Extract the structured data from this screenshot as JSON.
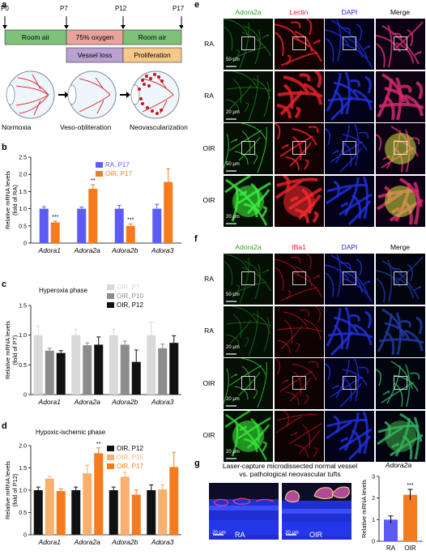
{
  "panels": {
    "a": "a",
    "b": "b",
    "c": "c",
    "d": "d",
    "e": "e",
    "f": "f",
    "g": "g"
  },
  "timeline": {
    "ticks": [
      "P0",
      "P7",
      "P12",
      "P17"
    ],
    "phases": [
      "Room air",
      "75% oxygen",
      "Room air"
    ],
    "stages": [
      "Vessel loss",
      "Proliferation"
    ],
    "eye_labels": [
      "Normoxia",
      "Veso-obliteration",
      "Neovascularization"
    ],
    "colors": {
      "room_air": "#7ec27a",
      "oxygen": "#e7a39c",
      "vessel_loss": "#b9a1d2",
      "proliferation": "#f6c98a",
      "vessel": "#d8383a"
    }
  },
  "chart_data": [
    {
      "panel": "b",
      "type": "bar",
      "ylabel": "Relative mRNA levels\n(fold of RA)",
      "ylim": [
        0,
        2.5
      ],
      "yticks": [
        "0",
        "0.5",
        "1.0",
        "1.5",
        "2.0",
        "2.5"
      ],
      "categories": [
        "Adora1",
        "Adora2a",
        "Adora2b",
        "Adora3"
      ],
      "series": [
        {
          "name": "RA, P17",
          "color": "#5c5cf2",
          "values": [
            1.0,
            1.0,
            1.0,
            1.0
          ],
          "errors": [
            0.06,
            0.05,
            0.1,
            0.13
          ]
        },
        {
          "name": "OIR, P17",
          "color": "#f57b1f",
          "values": [
            0.6,
            1.58,
            0.5,
            1.78
          ],
          "errors": [
            0.04,
            0.12,
            0.06,
            0.38
          ]
        }
      ],
      "annotations": [
        {
          "category": "Adora1",
          "series": "OIR, P17",
          "text": "***"
        },
        {
          "category": "Adora2a",
          "series": "OIR, P17",
          "text": "**"
        },
        {
          "category": "Adora2b",
          "series": "OIR, P17",
          "text": "***"
        }
      ]
    },
    {
      "panel": "c",
      "type": "bar",
      "title": "Hyperoxia phase",
      "ylabel": "Relative mRNA levels\n(fold of P7)",
      "ylim": [
        0,
        1.5
      ],
      "yticks": [
        "0",
        "0.5",
        "1.0",
        "1.5"
      ],
      "categories": [
        "Adora1",
        "Adora2a",
        "Adora2b",
        "Adora3"
      ],
      "series": [
        {
          "name": "OIR, P7",
          "color": "#d9d9d9",
          "values": [
            1.0,
            1.0,
            1.0,
            1.0
          ],
          "errors": [
            0.15,
            0.1,
            0.1,
            0.22
          ]
        },
        {
          "name": "OIR, P10",
          "color": "#8c8c8c",
          "values": [
            0.74,
            0.83,
            0.84,
            0.78
          ],
          "errors": [
            0.04,
            0.04,
            0.06,
            0.07
          ]
        },
        {
          "name": "OIR, P12",
          "color": "#111111",
          "values": [
            0.7,
            0.84,
            0.55,
            0.87
          ],
          "errors": [
            0.04,
            0.13,
            0.2,
            0.12
          ]
        }
      ]
    },
    {
      "panel": "d",
      "type": "bar",
      "title": "Hypoxic-ischemic phase",
      "ylabel": "Relative mRNA levels\n(fold of P12)",
      "ylim": [
        0,
        2.0
      ],
      "yticks": [
        "0",
        "0.5",
        "1.0",
        "1.5",
        "2.0"
      ],
      "categories": [
        "Adora1",
        "Adora2a",
        "Adora2b",
        "Adora3"
      ],
      "series": [
        {
          "name": "OIR, P12",
          "color": "#111111",
          "values": [
            1.0,
            1.0,
            1.0,
            1.0
          ],
          "errors": [
            0.07,
            0.07,
            0.07,
            0.12
          ]
        },
        {
          "name": "OIR, P15",
          "color": "#f9b06c",
          "values": [
            1.26,
            1.38,
            1.3,
            1.02
          ],
          "errors": [
            0.05,
            0.18,
            0.1,
            0.1
          ]
        },
        {
          "name": "OIR, P17",
          "color": "#f57b1f",
          "values": [
            0.98,
            1.83,
            0.9,
            1.52
          ],
          "errors": [
            0.05,
            0.12,
            0.1,
            0.33
          ]
        }
      ],
      "annotations": [
        {
          "category": "Adora2a",
          "series": "OIR, P17",
          "text": "**"
        }
      ]
    },
    {
      "panel": "g",
      "type": "bar",
      "title": "Adora2a",
      "ylabel": "Relative mRNA levels",
      "ylim": [
        0,
        3
      ],
      "yticks": [
        "0",
        "1",
        "2",
        "3"
      ],
      "categories": [
        "RA",
        "OIR"
      ],
      "series": [
        {
          "name": "",
          "colors": [
            "#5c5cf2",
            "#f57b1f"
          ],
          "values": [
            1.0,
            2.15
          ],
          "errors": [
            0.17,
            0.25
          ]
        }
      ],
      "annotations": [
        {
          "category": "OIR",
          "text": "***"
        }
      ]
    }
  ],
  "panel_e": {
    "col_headers": [
      "Adora2a",
      "Lectin",
      "DAPI",
      "Merge"
    ],
    "header_colors": [
      "#2ca02c",
      "#e31a1c",
      "#2020e0",
      "#000000"
    ],
    "row_labels": [
      "RA",
      "RA",
      "OIR",
      "OIR"
    ],
    "scalebars": [
      "50 μm",
      "20 μm",
      "50 μm",
      "20 μm"
    ]
  },
  "panel_f": {
    "col_headers": [
      "Adora2a",
      "IBa1",
      "DAPI",
      "Merge"
    ],
    "header_colors": [
      "#2ca02c",
      "#e31a1c",
      "#2020e0",
      "#000000"
    ],
    "row_labels": [
      "RA",
      "RA",
      "OIR",
      "OIR"
    ],
    "scalebars": [
      "50 μm",
      "20 μm",
      "20 μm",
      "20 μm"
    ]
  },
  "panel_g": {
    "caption_line1": "Laser-capture microdissected normal vessel",
    "caption_line2": "vs. pathological neovascular tufts",
    "image_labels": [
      "RA",
      "OIR"
    ],
    "scalebars": [
      "20 μm",
      "20 μm"
    ]
  }
}
